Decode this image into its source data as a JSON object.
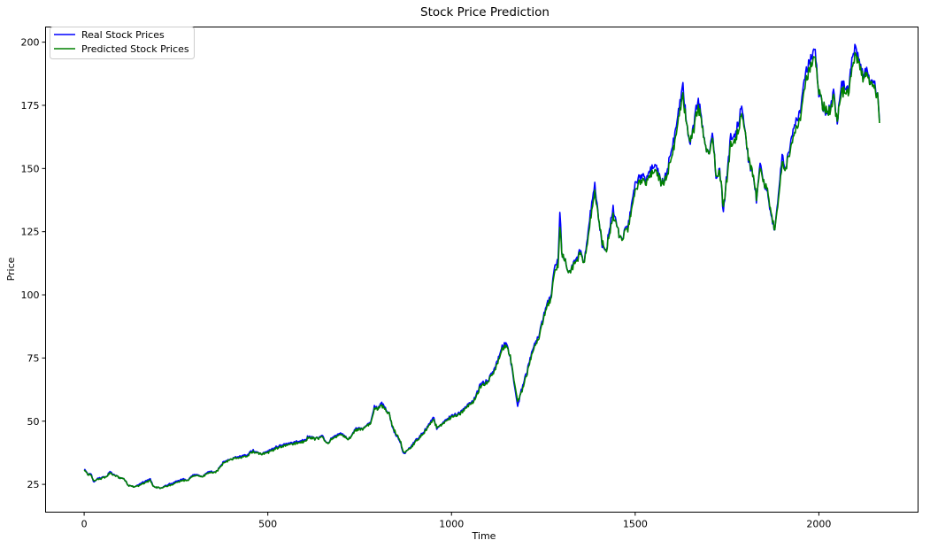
{
  "chart_data": {
    "type": "line",
    "title": "Stock Price Prediction",
    "xlabel": "Time",
    "ylabel": "Price",
    "xlim": [
      -105,
      2270
    ],
    "ylim": [
      14,
      206
    ],
    "xticks": [
      0,
      500,
      1000,
      1500,
      2000
    ],
    "yticks": [
      25,
      50,
      75,
      100,
      125,
      150,
      175,
      200
    ],
    "legend": "top-left",
    "grid": false,
    "series": [
      {
        "name": "Real Stock Prices",
        "color": "#0000ff",
        "keypoints": [
          [
            0,
            31
          ],
          [
            10,
            29
          ],
          [
            20,
            29
          ],
          [
            25,
            26
          ],
          [
            40,
            27.5
          ],
          [
            60,
            28
          ],
          [
            70,
            30
          ],
          [
            90,
            28
          ],
          [
            110,
            27
          ],
          [
            120,
            24.5
          ],
          [
            140,
            24
          ],
          [
            150,
            25
          ],
          [
            170,
            26.5
          ],
          [
            180,
            27
          ],
          [
            190,
            24
          ],
          [
            210,
            23.5
          ],
          [
            230,
            25
          ],
          [
            250,
            26
          ],
          [
            270,
            27
          ],
          [
            280,
            26.5
          ],
          [
            300,
            29
          ],
          [
            320,
            28
          ],
          [
            340,
            30
          ],
          [
            360,
            30
          ],
          [
            380,
            34
          ],
          [
            400,
            35
          ],
          [
            420,
            36
          ],
          [
            440,
            36.5
          ],
          [
            460,
            38.5
          ],
          [
            480,
            37
          ],
          [
            500,
            38
          ],
          [
            520,
            39.5
          ],
          [
            540,
            40.5
          ],
          [
            560,
            41
          ],
          [
            580,
            42
          ],
          [
            600,
            42.5
          ],
          [
            610,
            44
          ],
          [
            630,
            43
          ],
          [
            650,
            44
          ],
          [
            660,
            41
          ],
          [
            680,
            44
          ],
          [
            700,
            45
          ],
          [
            720,
            43
          ],
          [
            740,
            47
          ],
          [
            760,
            47
          ],
          [
            780,
            49.5
          ],
          [
            790,
            56
          ],
          [
            800,
            55
          ],
          [
            810,
            57
          ],
          [
            830,
            53
          ],
          [
            840,
            47
          ],
          [
            860,
            42
          ],
          [
            870,
            37
          ],
          [
            890,
            40
          ],
          [
            900,
            42
          ],
          [
            920,
            45
          ],
          [
            940,
            49
          ],
          [
            950,
            52
          ],
          [
            960,
            47
          ],
          [
            980,
            50
          ],
          [
            1000,
            52
          ],
          [
            1020,
            53
          ],
          [
            1040,
            56
          ],
          [
            1060,
            58
          ],
          [
            1080,
            65
          ],
          [
            1100,
            66
          ],
          [
            1120,
            72
          ],
          [
            1140,
            80
          ],
          [
            1150,
            81
          ],
          [
            1160,
            75
          ],
          [
            1170,
            65
          ],
          [
            1180,
            56
          ],
          [
            1190,
            62
          ],
          [
            1210,
            72
          ],
          [
            1220,
            78
          ],
          [
            1240,
            85
          ],
          [
            1250,
            91
          ],
          [
            1260,
            96
          ],
          [
            1270,
            99
          ],
          [
            1280,
            110
          ],
          [
            1290,
            114
          ],
          [
            1295,
            134
          ],
          [
            1300,
            117
          ],
          [
            1320,
            109
          ],
          [
            1340,
            114
          ],
          [
            1350,
            118
          ],
          [
            1360,
            112
          ],
          [
            1370,
            122
          ],
          [
            1380,
            135
          ],
          [
            1390,
            143
          ],
          [
            1400,
            131
          ],
          [
            1410,
            120
          ],
          [
            1420,
            117
          ],
          [
            1430,
            126
          ],
          [
            1440,
            134
          ],
          [
            1450,
            127
          ],
          [
            1460,
            122
          ],
          [
            1480,
            127
          ],
          [
            1500,
            145
          ],
          [
            1510,
            146
          ],
          [
            1520,
            148
          ],
          [
            1530,
            145
          ],
          [
            1540,
            150
          ],
          [
            1560,
            150
          ],
          [
            1570,
            144
          ],
          [
            1580,
            146
          ],
          [
            1600,
            157
          ],
          [
            1610,
            165
          ],
          [
            1620,
            175
          ],
          [
            1630,
            182
          ],
          [
            1640,
            168
          ],
          [
            1650,
            160
          ],
          [
            1660,
            168
          ],
          [
            1670,
            177
          ],
          [
            1680,
            171
          ],
          [
            1690,
            160
          ],
          [
            1700,
            155
          ],
          [
            1710,
            165
          ],
          [
            1720,
            147
          ],
          [
            1730,
            150
          ],
          [
            1740,
            133
          ],
          [
            1750,
            148
          ],
          [
            1760,
            162
          ],
          [
            1770,
            162
          ],
          [
            1780,
            168
          ],
          [
            1790,
            175
          ],
          [
            1800,
            163
          ],
          [
            1810,
            152
          ],
          [
            1820,
            148
          ],
          [
            1830,
            138
          ],
          [
            1840,
            152
          ],
          [
            1850,
            145
          ],
          [
            1860,
            140
          ],
          [
            1870,
            130
          ],
          [
            1880,
            126
          ],
          [
            1890,
            140
          ],
          [
            1900,
            155
          ],
          [
            1910,
            150
          ],
          [
            1920,
            158
          ],
          [
            1930,
            165
          ],
          [
            1940,
            170
          ],
          [
            1950,
            174
          ],
          [
            1960,
            185
          ],
          [
            1970,
            190
          ],
          [
            1980,
            194
          ],
          [
            1990,
            196
          ],
          [
            2000,
            180
          ],
          [
            2010,
            175
          ],
          [
            2020,
            172
          ],
          [
            2030,
            174
          ],
          [
            2040,
            180
          ],
          [
            2050,
            167
          ],
          [
            2060,
            182
          ],
          [
            2070,
            183
          ],
          [
            2080,
            180
          ],
          [
            2090,
            195
          ],
          [
            2100,
            198
          ],
          [
            2110,
            192
          ],
          [
            2120,
            187
          ],
          [
            2130,
            190
          ],
          [
            2140,
            184
          ],
          [
            2150,
            185
          ],
          [
            2160,
            178
          ],
          [
            2165,
            169
          ]
        ]
      },
      {
        "name": "Predicted Stock Prices",
        "color": "#008000",
        "keypoints": [
          [
            0,
            30.5
          ],
          [
            10,
            29
          ],
          [
            20,
            28.5
          ],
          [
            25,
            26.5
          ],
          [
            40,
            27
          ],
          [
            60,
            28
          ],
          [
            70,
            29.5
          ],
          [
            90,
            28
          ],
          [
            110,
            27
          ],
          [
            120,
            24.5
          ],
          [
            140,
            24
          ],
          [
            150,
            24.5
          ],
          [
            170,
            26
          ],
          [
            180,
            26.5
          ],
          [
            190,
            24
          ],
          [
            210,
            23.5
          ],
          [
            230,
            24.5
          ],
          [
            250,
            25.5
          ],
          [
            270,
            26.5
          ],
          [
            280,
            26.5
          ],
          [
            300,
            28.5
          ],
          [
            320,
            28
          ],
          [
            340,
            29.5
          ],
          [
            360,
            30
          ],
          [
            380,
            33.5
          ],
          [
            400,
            35
          ],
          [
            420,
            35.5
          ],
          [
            440,
            36
          ],
          [
            460,
            38
          ],
          [
            480,
            37
          ],
          [
            500,
            37.5
          ],
          [
            520,
            39
          ],
          [
            540,
            40
          ],
          [
            560,
            40.5
          ],
          [
            580,
            41.5
          ],
          [
            600,
            42
          ],
          [
            610,
            43.5
          ],
          [
            630,
            43
          ],
          [
            650,
            43.5
          ],
          [
            660,
            41
          ],
          [
            680,
            43.5
          ],
          [
            700,
            44.5
          ],
          [
            720,
            43
          ],
          [
            740,
            46.5
          ],
          [
            760,
            47
          ],
          [
            780,
            49
          ],
          [
            790,
            55
          ],
          [
            800,
            55
          ],
          [
            810,
            56
          ],
          [
            830,
            53
          ],
          [
            840,
            47.5
          ],
          [
            860,
            42.5
          ],
          [
            870,
            37.5
          ],
          [
            890,
            39.5
          ],
          [
            900,
            41.5
          ],
          [
            920,
            44.5
          ],
          [
            940,
            48.5
          ],
          [
            950,
            51
          ],
          [
            960,
            47.5
          ],
          [
            980,
            49.5
          ],
          [
            1000,
            51.5
          ],
          [
            1020,
            52.5
          ],
          [
            1040,
            55.5
          ],
          [
            1060,
            57.5
          ],
          [
            1080,
            64
          ],
          [
            1100,
            65.5
          ],
          [
            1120,
            71
          ],
          [
            1140,
            79
          ],
          [
            1150,
            80
          ],
          [
            1160,
            75.5
          ],
          [
            1170,
            66
          ],
          [
            1180,
            58
          ],
          [
            1190,
            61
          ],
          [
            1210,
            71
          ],
          [
            1220,
            77
          ],
          [
            1240,
            84
          ],
          [
            1250,
            90
          ],
          [
            1260,
            95
          ],
          [
            1270,
            98
          ],
          [
            1280,
            108
          ],
          [
            1290,
            112
          ],
          [
            1295,
            128
          ],
          [
            1300,
            117
          ],
          [
            1320,
            109
          ],
          [
            1340,
            113
          ],
          [
            1350,
            117
          ],
          [
            1360,
            112
          ],
          [
            1370,
            120
          ],
          [
            1380,
            132
          ],
          [
            1390,
            140
          ],
          [
            1400,
            131
          ],
          [
            1410,
            121
          ],
          [
            1420,
            117
          ],
          [
            1430,
            124
          ],
          [
            1440,
            131
          ],
          [
            1450,
            127
          ],
          [
            1460,
            122
          ],
          [
            1480,
            126
          ],
          [
            1500,
            142
          ],
          [
            1510,
            144
          ],
          [
            1520,
            146
          ],
          [
            1530,
            144
          ],
          [
            1540,
            148
          ],
          [
            1560,
            148
          ],
          [
            1570,
            144
          ],
          [
            1580,
            145
          ],
          [
            1600,
            154
          ],
          [
            1610,
            162
          ],
          [
            1620,
            172
          ],
          [
            1630,
            178
          ],
          [
            1640,
            168
          ],
          [
            1650,
            161
          ],
          [
            1660,
            166
          ],
          [
            1670,
            174
          ],
          [
            1680,
            170
          ],
          [
            1690,
            160
          ],
          [
            1700,
            155
          ],
          [
            1710,
            163
          ],
          [
            1720,
            148
          ],
          [
            1730,
            149
          ],
          [
            1740,
            135
          ],
          [
            1750,
            146
          ],
          [
            1760,
            159
          ],
          [
            1770,
            160
          ],
          [
            1780,
            165
          ],
          [
            1790,
            172
          ],
          [
            1800,
            163
          ],
          [
            1810,
            153
          ],
          [
            1820,
            148
          ],
          [
            1830,
            139
          ],
          [
            1840,
            150
          ],
          [
            1850,
            145
          ],
          [
            1860,
            141
          ],
          [
            1870,
            131
          ],
          [
            1880,
            126
          ],
          [
            1890,
            138
          ],
          [
            1900,
            152
          ],
          [
            1910,
            150
          ],
          [
            1920,
            156
          ],
          [
            1930,
            162
          ],
          [
            1940,
            167
          ],
          [
            1950,
            171
          ],
          [
            1960,
            181
          ],
          [
            1970,
            187
          ],
          [
            1980,
            191
          ],
          [
            1990,
            193
          ],
          [
            2000,
            181
          ],
          [
            2010,
            175
          ],
          [
            2020,
            173
          ],
          [
            2030,
            173
          ],
          [
            2040,
            178
          ],
          [
            2050,
            168
          ],
          [
            2060,
            179
          ],
          [
            2070,
            181
          ],
          [
            2080,
            179
          ],
          [
            2090,
            191
          ],
          [
            2100,
            195
          ],
          [
            2110,
            191
          ],
          [
            2120,
            186
          ],
          [
            2130,
            188
          ],
          [
            2140,
            184
          ],
          [
            2150,
            183
          ],
          [
            2160,
            178
          ],
          [
            2165,
            168
          ]
        ]
      }
    ]
  }
}
